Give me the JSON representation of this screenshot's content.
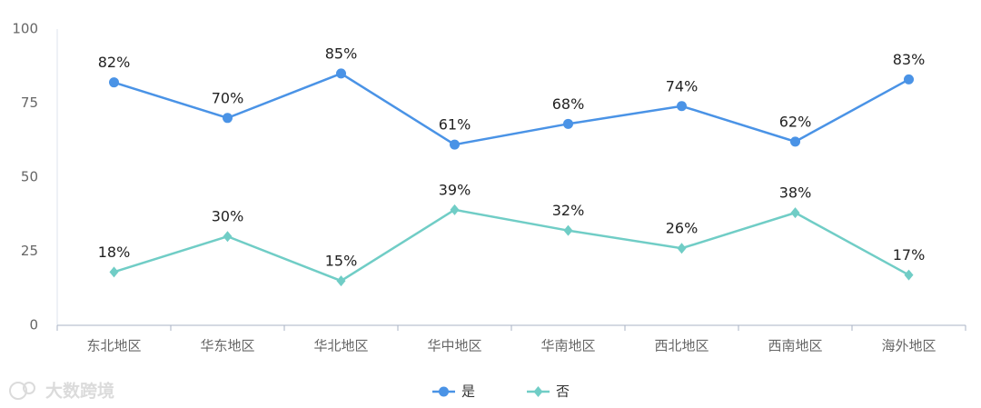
{
  "chart_data": {
    "type": "line",
    "categories": [
      "东北地区",
      "华东地区",
      "华北地区",
      "华中地区",
      "华南地区",
      "西北地区",
      "西南地区",
      "海外地区"
    ],
    "series": [
      {
        "name": "是",
        "color": "#4a93e6",
        "marker": "circle",
        "values": [
          82,
          70,
          85,
          61,
          68,
          74,
          62,
          83
        ],
        "value_labels": [
          "82%",
          "70%",
          "85%",
          "61%",
          "68%",
          "74%",
          "62%",
          "83%"
        ]
      },
      {
        "name": "否",
        "color": "#70cdc6",
        "marker": "diamond",
        "values": [
          18,
          30,
          15,
          39,
          32,
          26,
          38,
          17
        ],
        "value_labels": [
          "18%",
          "30%",
          "15%",
          "39%",
          "32%",
          "26%",
          "38%",
          "17%"
        ]
      }
    ],
    "ylim": [
      0,
      100
    ],
    "yticks": [
      0,
      25,
      50,
      75,
      100
    ],
    "grid": false,
    "legend": "bottom"
  },
  "watermark": "大数跨境"
}
